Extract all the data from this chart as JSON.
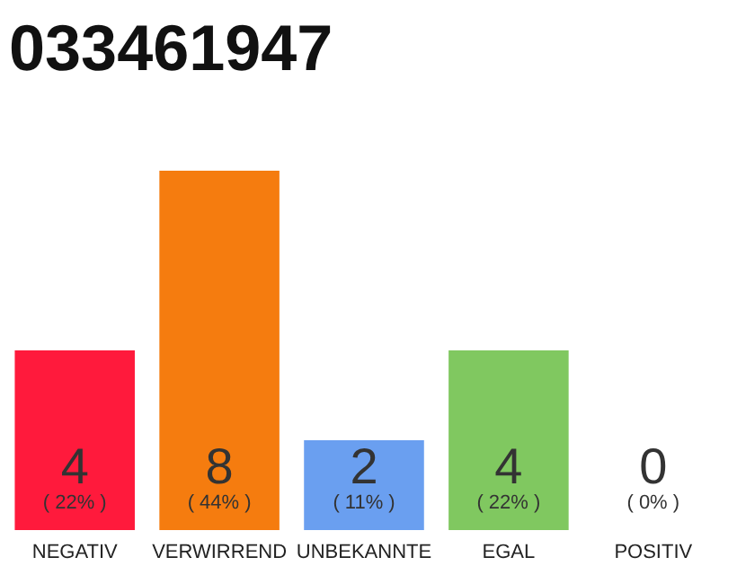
{
  "chart_data": {
    "type": "bar",
    "title": "033461947",
    "categories": [
      "NEGATIV",
      "VERWIRREND",
      "UNBEKANNTE",
      "EGAL",
      "POSITIV"
    ],
    "values": [
      4,
      8,
      2,
      4,
      0
    ],
    "data_labels": true,
    "colors": [
      "#ff1a3c",
      "#f57c0f",
      "#6a9ff0",
      "#80c860",
      "#cccccc"
    ],
    "annotations": [
      {
        "text": "( 22% )",
        "x": "NEGATIV",
        "y": 0
      },
      {
        "text": "( 44% )",
        "x": "VERWIRREND",
        "y": 0
      },
      {
        "text": "( 11% )",
        "x": "UNBEKANNTE",
        "y": 0
      },
      {
        "text": "( 22% )",
        "x": "EGAL",
        "y": 0
      },
      {
        "text": "( 0% )",
        "x": "POSITIV",
        "y": 0
      }
    ]
  }
}
